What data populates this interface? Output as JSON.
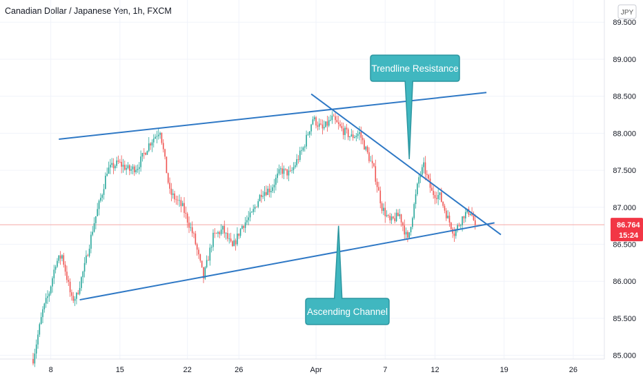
{
  "title": "Canadian Dollar / Japanese Yen, 1h, FXCM",
  "currency": "JPY",
  "chart_data": {
    "type": "candlestick",
    "symbol": "CADJPY",
    "interval": "1h",
    "y_ticks": [
      "89.500",
      "89.000",
      "88.500",
      "88.000",
      "87.500",
      "87.000",
      "86.500",
      "86.000",
      "85.500",
      "85.000"
    ],
    "y_tick_values": [
      89.5,
      89.0,
      88.5,
      88.0,
      87.5,
      87.0,
      86.5,
      86.0,
      85.5,
      85.0
    ],
    "ylim": [
      84.95,
      89.8
    ],
    "x_ticks": [
      "8",
      "15",
      "22",
      "26",
      "Apr",
      "7",
      "12",
      "19",
      "26"
    ],
    "x_tick_index": [
      11,
      54,
      96,
      128,
      176,
      219,
      250,
      293,
      336
    ],
    "last_price": "86.764",
    "countdown": "15:24",
    "anchors": [
      [
        0,
        84.95
      ],
      [
        6,
        85.6
      ],
      [
        10,
        85.85
      ],
      [
        14,
        86.25
      ],
      [
        18,
        86.35
      ],
      [
        24,
        85.75
      ],
      [
        27,
        85.8
      ],
      [
        32,
        86.2
      ],
      [
        38,
        86.8
      ],
      [
        43,
        87.2
      ],
      [
        46,
        87.5
      ],
      [
        53,
        87.6
      ],
      [
        60,
        87.5
      ],
      [
        65,
        87.55
      ],
      [
        72,
        87.85
      ],
      [
        79,
        88.05
      ],
      [
        85,
        87.2
      ],
      [
        93,
        87.0
      ],
      [
        100,
        86.6
      ],
      [
        106,
        86.05
      ],
      [
        112,
        86.6
      ],
      [
        118,
        86.7
      ],
      [
        124,
        86.45
      ],
      [
        130,
        86.75
      ],
      [
        136,
        86.9
      ],
      [
        142,
        87.2
      ],
      [
        148,
        87.25
      ],
      [
        154,
        87.5
      ],
      [
        160,
        87.45
      ],
      [
        168,
        87.8
      ],
      [
        174,
        88.2
      ],
      [
        180,
        88.05
      ],
      [
        186,
        88.2
      ],
      [
        192,
        88.05
      ],
      [
        198,
        87.95
      ],
      [
        203,
        88.0
      ],
      [
        212,
        87.5
      ],
      [
        217,
        87.0
      ],
      [
        222,
        86.8
      ],
      [
        228,
        86.9
      ],
      [
        233,
        86.55
      ],
      [
        236,
        86.9
      ],
      [
        240,
        87.4
      ],
      [
        243,
        87.55
      ],
      [
        248,
        87.2
      ],
      [
        253,
        87.15
      ],
      [
        258,
        86.85
      ],
      [
        262,
        86.65
      ],
      [
        268,
        86.9
      ],
      [
        272,
        86.95
      ],
      [
        275,
        86.76
      ]
    ],
    "lines": [
      {
        "label": "Upper trendline",
        "points": [
          [
            16,
            87.92
          ],
          [
            282,
            88.55
          ]
        ]
      },
      {
        "label": "Descending trendline",
        "points": [
          [
            173,
            88.53
          ],
          [
            291,
            86.63
          ]
        ]
      },
      {
        "label": "Ascending support",
        "points": [
          [
            29,
            85.75
          ],
          [
            287,
            86.79
          ]
        ]
      }
    ],
    "annotations": [
      {
        "text": "Trendline Resistance",
        "target": [
          234,
          87.65
        ]
      },
      {
        "text": "Ascending Channel",
        "target": [
          190,
          86.75
        ]
      }
    ]
  }
}
